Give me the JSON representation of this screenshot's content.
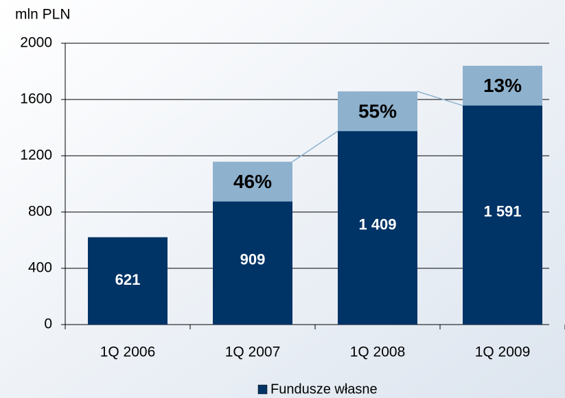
{
  "chart_data": {
    "type": "bar",
    "y_axis_label": "mln PLN",
    "categories": [
      "1Q 2006",
      "1Q 2007",
      "1Q 2008",
      "1Q 2009"
    ],
    "series": [
      {
        "name": "Fundusze własne",
        "color": "#003366",
        "values": [
          621,
          909,
          1409,
          1591
        ],
        "value_labels": [
          "621",
          "909",
          "1 409",
          "1 591"
        ]
      }
    ],
    "growth": [
      null,
      46,
      55,
      13
    ],
    "growth_labels": [
      null,
      "46%",
      "55%",
      "13%"
    ],
    "growth_color": "#8eb1cd",
    "ylim": [
      0,
      2000
    ],
    "yticks": [
      0,
      400,
      800,
      1200,
      1600,
      2000
    ],
    "grid": true
  }
}
